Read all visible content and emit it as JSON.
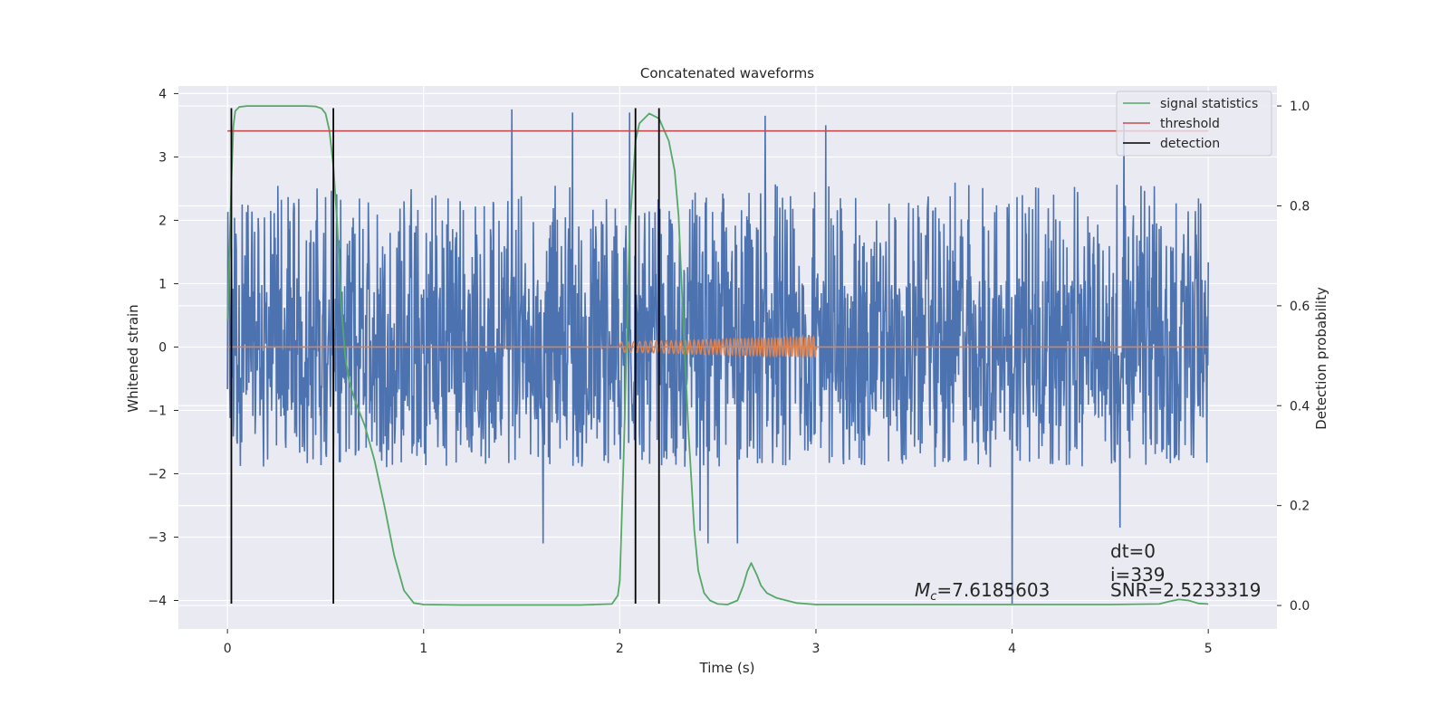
{
  "chart_data": {
    "type": "line",
    "title": "Concatenated waveforms",
    "xlabel": "Time (s)",
    "ylabel": "Whitened strain",
    "y2label": "Detection probability",
    "xlim": [
      -0.25,
      5.35
    ],
    "ylim": [
      -4.45,
      4.12
    ],
    "y2lim": [
      -0.047,
      1.04
    ],
    "xticks": [
      0,
      1,
      2,
      3,
      4,
      5
    ],
    "yticks": [
      -4,
      -3,
      -2,
      -1,
      0,
      1,
      2,
      3,
      4
    ],
    "y2ticks": [
      0.0,
      0.2,
      0.4,
      0.6,
      0.8,
      1.0
    ],
    "grid": true,
    "legend_position": "top-right",
    "colors": {
      "background": "#eaeaf2",
      "strain": "#4c72b0",
      "template": "#dd8452",
      "signal_statistics": "#55a868",
      "threshold": "#c44e52",
      "detection": "#000000",
      "text": "#262626"
    },
    "series": [
      {
        "key": "strain",
        "description_axis": "left",
        "x_range": [
          0,
          5
        ],
        "typical_range": [
          -1.9,
          2.6
        ],
        "spikes": [
          [
            1.45,
            3.75
          ],
          [
            1.76,
            3.7
          ],
          [
            2.05,
            3.7
          ],
          [
            2.74,
            3.65
          ],
          [
            4.57,
            3.55
          ],
          [
            3.05,
            3.5
          ],
          [
            0.9,
            2.3
          ],
          [
            2.6,
            -3.1
          ],
          [
            1.61,
            -3.1
          ],
          [
            4.55,
            -2.85
          ],
          [
            4.0,
            -4.05
          ],
          [
            2.41,
            -2.9
          ],
          [
            2.45,
            -3.1
          ]
        ]
      },
      {
        "key": "template",
        "description_axis": "left",
        "x_range": [
          2.0,
          3.0
        ],
        "amplitude_range": [
          0.08,
          0.16
        ]
      },
      {
        "name": "signal statistics",
        "axis": "right",
        "x": [
          0.0,
          0.01,
          0.02,
          0.03,
          0.04,
          0.06,
          0.1,
          0.2,
          0.3,
          0.4,
          0.45,
          0.48,
          0.5,
          0.52,
          0.54,
          0.56,
          0.58,
          0.6,
          0.62,
          0.65,
          0.7,
          0.75,
          0.8,
          0.85,
          0.9,
          0.95,
          1.0,
          1.2,
          1.5,
          1.8,
          1.96,
          1.99,
          2.0,
          2.02,
          2.05,
          2.08,
          2.1,
          2.15,
          2.2,
          2.25,
          2.28,
          2.3,
          2.32,
          2.35,
          2.38,
          2.4,
          2.43,
          2.46,
          2.5,
          2.55,
          2.6,
          2.63,
          2.65,
          2.67,
          2.7,
          2.72,
          2.75,
          2.8,
          2.85,
          2.9,
          3.0,
          3.5,
          4.0,
          4.5,
          4.75,
          4.8,
          4.85,
          4.9,
          4.95,
          5.0
        ],
        "values": [
          0.57,
          0.7,
          0.85,
          0.96,
          0.99,
          0.998,
          1.0,
          1.0,
          1.0,
          1.0,
          0.999,
          0.995,
          0.985,
          0.95,
          0.88,
          0.76,
          0.6,
          0.5,
          0.45,
          0.41,
          0.36,
          0.29,
          0.2,
          0.1,
          0.03,
          0.005,
          0.002,
          0.001,
          0.001,
          0.001,
          0.003,
          0.02,
          0.05,
          0.3,
          0.75,
          0.93,
          0.965,
          0.985,
          0.975,
          0.93,
          0.87,
          0.78,
          0.6,
          0.35,
          0.15,
          0.07,
          0.025,
          0.01,
          0.003,
          0.002,
          0.01,
          0.04,
          0.068,
          0.085,
          0.06,
          0.04,
          0.025,
          0.015,
          0.01,
          0.005,
          0.002,
          0.002,
          0.002,
          0.002,
          0.003,
          0.008,
          0.012,
          0.01,
          0.004,
          0.003
        ]
      },
      {
        "name": "threshold",
        "axis": "right",
        "x": [
          0,
          5
        ],
        "values": [
          0.95,
          0.95
        ]
      },
      {
        "name": "detection",
        "axis": "left",
        "x": [
          0.02,
          0.54,
          2.08,
          2.2
        ],
        "y_range": [
          -4.05,
          3.77
        ]
      }
    ],
    "annotations": {
      "mc_prefix": "M",
      "mc_sub": "c",
      "mc_value": "=7.6185603",
      "dt": "dt=0",
      "i": "i=339",
      "snr": "SNR=2.5233319"
    }
  }
}
